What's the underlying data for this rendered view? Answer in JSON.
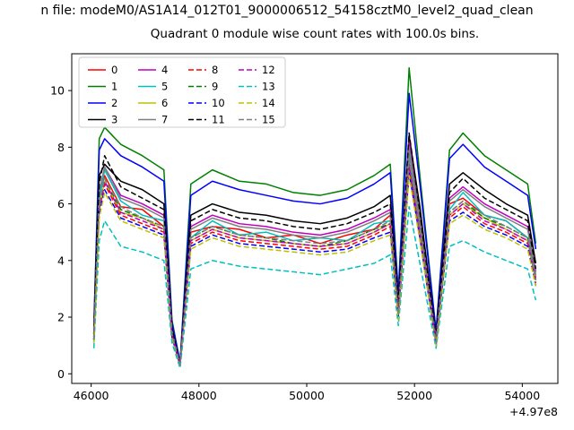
{
  "figure": {
    "suptitle": "n file: modeM0/AS1A14_012T01_9000006512_54158cztM0_level2_quad_clean",
    "axes_title": "Quadrant 0 module wise count rates with 100.0s bins."
  },
  "chart_data": {
    "type": "line",
    "title": "Quadrant 0 module wise count rates with 100.0s bins.",
    "suptitle_visible_text": "n file: modeM0/AS1A14_012T01_9000006512_54158cztM0_level2_quad_clean",
    "xlabel": "",
    "ylabel": "",
    "x_offset_label": "+4.97e8",
    "x_ticks": [
      46000,
      48000,
      50000,
      52000,
      54000
    ],
    "x_tick_labels": [
      "46000",
      "48000",
      "50000",
      "52000",
      "54000"
    ],
    "y_ticks": [
      0,
      2,
      4,
      6,
      8,
      10
    ],
    "xlim": [
      45640,
      54660
    ],
    "ylim": [
      -0.34,
      11.3
    ],
    "grid": false,
    "legend_position": "upper left",
    "legend_columns": 4,
    "x": [
      46050,
      46150,
      46250,
      46550,
      46950,
      47350,
      47500,
      47650,
      47850,
      48250,
      48750,
      49250,
      49750,
      50250,
      50750,
      51250,
      51550,
      51700,
      51900,
      52100,
      52400,
      52650,
      52900,
      53300,
      53700,
      54100,
      54250
    ],
    "series": [
      {
        "name": "0",
        "color": "#ff0000",
        "linestyle": "solid",
        "values": [
          1.2,
          6.3,
          7.0,
          5.9,
          5.8,
          5.2,
          1.4,
          0.3,
          5.0,
          5.2,
          5.1,
          4.8,
          4.9,
          4.6,
          4.9,
          5.1,
          5.6,
          2.1,
          7.9,
          5.1,
          1.1,
          6.0,
          6.2,
          5.6,
          5.4,
          4.8,
          3.4
        ]
      },
      {
        "name": "1",
        "color": "#008000",
        "linestyle": "solid",
        "values": [
          1.7,
          8.3,
          8.7,
          8.1,
          7.7,
          7.2,
          1.9,
          0.4,
          6.7,
          7.2,
          6.8,
          6.7,
          6.4,
          6.3,
          6.5,
          7.0,
          7.4,
          2.9,
          10.8,
          7.0,
          1.5,
          7.9,
          8.5,
          7.7,
          7.2,
          6.7,
          4.6
        ]
      },
      {
        "name": "2",
        "color": "#0000ff",
        "linestyle": "solid",
        "values": [
          1.6,
          7.9,
          8.3,
          7.7,
          7.3,
          6.8,
          1.8,
          0.4,
          6.3,
          6.8,
          6.5,
          6.3,
          6.1,
          6.0,
          6.2,
          6.7,
          7.1,
          2.8,
          9.9,
          6.7,
          1.5,
          7.6,
          8.1,
          7.3,
          6.8,
          6.3,
          4.4
        ]
      },
      {
        "name": "3",
        "color": "#000000",
        "linestyle": "solid",
        "values": [
          1.4,
          7.0,
          7.4,
          6.8,
          6.5,
          6.0,
          1.6,
          0.3,
          5.6,
          6.0,
          5.7,
          5.6,
          5.4,
          5.3,
          5.5,
          5.9,
          6.3,
          2.5,
          8.4,
          5.9,
          1.3,
          6.7,
          7.1,
          6.5,
          6.0,
          5.6,
          3.9
        ]
      },
      {
        "name": "4",
        "color": "#bf00bf",
        "linestyle": "solid",
        "values": [
          1.3,
          6.4,
          7.3,
          6.3,
          6.0,
          5.6,
          1.5,
          0.3,
          5.2,
          5.6,
          5.3,
          5.2,
          5.0,
          4.9,
          5.1,
          5.5,
          5.8,
          2.3,
          8.2,
          5.5,
          1.2,
          6.2,
          6.6,
          6.0,
          5.6,
          5.2,
          3.6
        ]
      },
      {
        "name": "5",
        "color": "#00bfbf",
        "linestyle": "solid",
        "values": [
          1.3,
          6.1,
          7.2,
          6.1,
          5.6,
          5.4,
          1.4,
          0.3,
          4.8,
          5.4,
          4.9,
          5.0,
          4.7,
          4.8,
          4.7,
          5.3,
          5.4,
          2.3,
          7.7,
          5.3,
          1.2,
          5.8,
          6.4,
          5.6,
          5.4,
          4.8,
          3.5
        ]
      },
      {
        "name": "6",
        "color": "#bfbf00",
        "linestyle": "solid",
        "values": [
          1.2,
          5.9,
          6.8,
          5.7,
          5.5,
          5.1,
          1.4,
          0.3,
          4.7,
          5.1,
          4.8,
          4.7,
          4.6,
          4.5,
          4.6,
          5.0,
          5.3,
          2.1,
          7.5,
          5.0,
          1.1,
          5.6,
          6.0,
          5.5,
          5.1,
          4.7,
          3.3
        ]
      },
      {
        "name": "7",
        "color": "#7f7f7f",
        "linestyle": "solid",
        "values": [
          1.3,
          6.4,
          7.3,
          6.2,
          5.9,
          5.5,
          1.5,
          0.3,
          5.1,
          5.5,
          5.2,
          5.1,
          4.9,
          4.8,
          5.0,
          5.4,
          5.7,
          2.3,
          8.0,
          5.4,
          1.2,
          6.1,
          6.5,
          5.9,
          5.5,
          5.1,
          3.5
        ]
      },
      {
        "name": "8",
        "color": "#ff0000",
        "linestyle": "dashed",
        "values": [
          1.2,
          5.8,
          6.7,
          5.6,
          5.3,
          5.0,
          1.3,
          0.3,
          4.6,
          5.0,
          4.7,
          4.6,
          4.5,
          4.4,
          4.5,
          4.9,
          5.2,
          2.0,
          7.3,
          4.9,
          1.1,
          5.5,
          5.9,
          5.3,
          5.0,
          4.6,
          3.2
        ]
      },
      {
        "name": "9",
        "color": "#008000",
        "linestyle": "dashed",
        "values": [
          1.2,
          6.0,
          6.9,
          5.8,
          5.5,
          5.2,
          1.4,
          0.3,
          4.8,
          5.2,
          4.9,
          4.8,
          4.6,
          4.5,
          4.7,
          5.1,
          5.3,
          2.1,
          7.5,
          5.1,
          1.1,
          5.7,
          6.1,
          5.5,
          5.2,
          4.8,
          3.3
        ]
      },
      {
        "name": "10",
        "color": "#0000ff",
        "linestyle": "dashed",
        "values": [
          1.1,
          5.7,
          6.5,
          5.5,
          5.2,
          4.9,
          1.3,
          0.3,
          4.5,
          4.9,
          4.6,
          4.5,
          4.4,
          4.3,
          4.4,
          4.8,
          5.0,
          2.0,
          7.1,
          4.8,
          1.0,
          5.4,
          5.7,
          5.2,
          4.9,
          4.5,
          3.1
        ]
      },
      {
        "name": "11",
        "color": "#000000",
        "linestyle": "dashed",
        "values": [
          1.4,
          6.7,
          7.7,
          6.6,
          6.2,
          5.8,
          1.6,
          0.3,
          5.4,
          5.8,
          5.5,
          5.4,
          5.2,
          5.1,
          5.3,
          5.7,
          6.0,
          2.4,
          8.5,
          5.7,
          1.2,
          6.4,
          6.9,
          6.2,
          5.8,
          5.4,
          3.7
        ]
      },
      {
        "name": "12",
        "color": "#bf00bf",
        "linestyle": "dashed",
        "values": [
          1.2,
          5.9,
          6.8,
          5.7,
          5.4,
          5.1,
          1.4,
          0.3,
          4.7,
          5.1,
          4.8,
          4.7,
          4.6,
          4.5,
          4.6,
          5.0,
          5.3,
          2.1,
          7.4,
          5.0,
          1.1,
          5.6,
          6.0,
          5.4,
          5.1,
          4.7,
          3.3
        ]
      },
      {
        "name": "13",
        "color": "#00bfbf",
        "linestyle": "dashed",
        "values": [
          0.9,
          4.7,
          5.4,
          4.5,
          4.3,
          4.0,
          1.1,
          0.2,
          3.7,
          4.0,
          3.8,
          3.7,
          3.6,
          3.5,
          3.7,
          3.9,
          4.2,
          1.7,
          5.9,
          3.9,
          0.9,
          4.5,
          4.7,
          4.3,
          4.0,
          3.7,
          2.6
        ]
      },
      {
        "name": "14",
        "color": "#bfbf00",
        "linestyle": "dashed",
        "values": [
          1.1,
          5.5,
          6.4,
          5.4,
          5.1,
          4.8,
          1.3,
          0.3,
          4.4,
          4.8,
          4.5,
          4.4,
          4.3,
          4.2,
          4.3,
          4.7,
          4.9,
          1.9,
          7.0,
          4.7,
          1.0,
          5.3,
          5.6,
          5.1,
          4.8,
          4.4,
          3.1
        ]
      },
      {
        "name": "15",
        "color": "#7f7f7f",
        "linestyle": "dashed",
        "values": [
          1.2,
          6.0,
          6.9,
          5.9,
          5.5,
          5.2,
          1.4,
          0.3,
          4.8,
          5.2,
          4.9,
          4.8,
          4.7,
          4.6,
          4.7,
          5.1,
          5.4,
          2.1,
          7.6,
          5.1,
          1.1,
          5.7,
          6.1,
          5.6,
          5.2,
          4.8,
          3.3
        ]
      }
    ]
  }
}
